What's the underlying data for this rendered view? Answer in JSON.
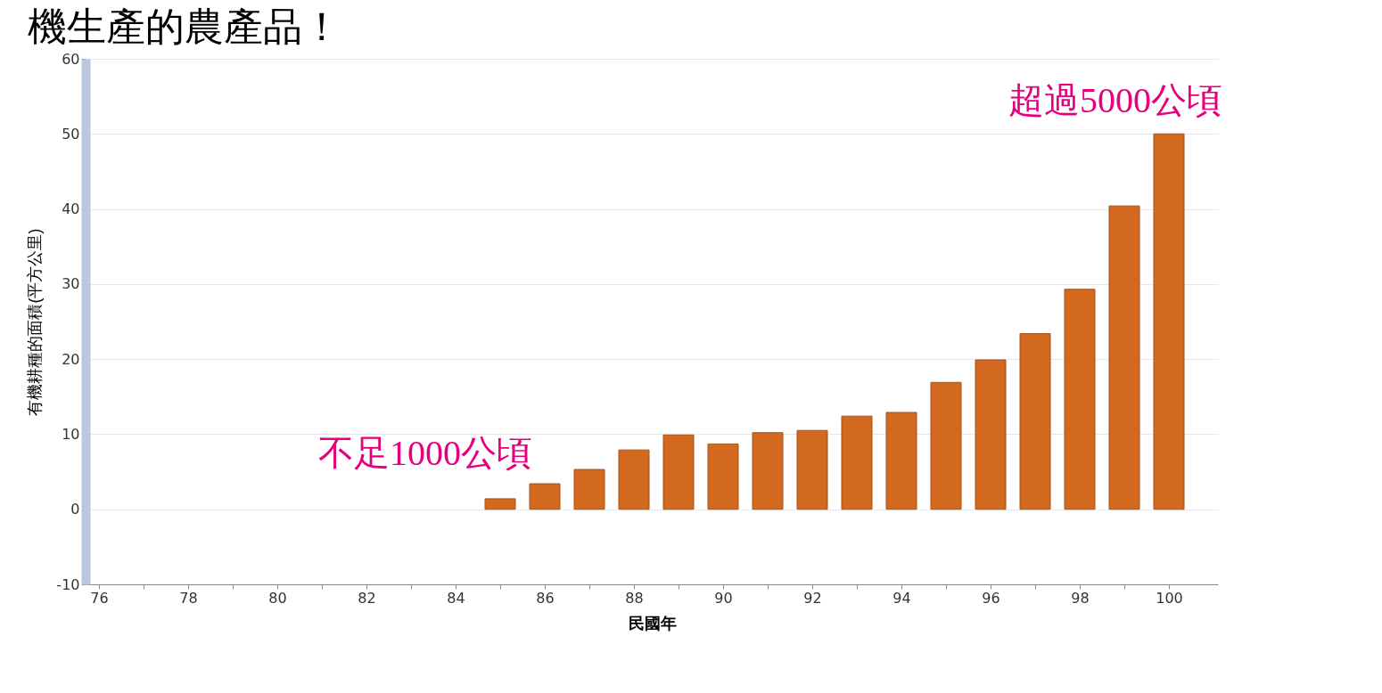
{
  "chart_data": {
    "type": "bar",
    "title": "機生產的農產品！",
    "xlabel": "民國年",
    "ylabel": "有機耕種的面積(平方公里)",
    "x": [
      85,
      86,
      87,
      88,
      89,
      90,
      91,
      92,
      93,
      94,
      95,
      96,
      97,
      98,
      99,
      100
    ],
    "values": [
      1.4,
      3.4,
      5.3,
      7.9,
      9.9,
      8.7,
      10.2,
      10.5,
      12.4,
      12.9,
      16.9,
      19.9,
      23.4,
      29.3,
      40.4,
      50
    ],
    "color": "#d2691e",
    "xlim": [
      75.8,
      101
    ],
    "xticks": [
      76,
      {
        "value": 77,
        "label": null
      },
      78,
      {
        "value": 79,
        "label": null
      },
      80,
      {
        "value": 81,
        "label": null
      },
      82,
      {
        "value": 83,
        "label": null
      },
      84,
      {
        "value": 85,
        "label": null
      },
      86,
      {
        "value": 87,
        "label": null
      },
      88,
      {
        "value": 89,
        "label": null
      },
      90,
      {
        "value": 91,
        "label": null
      },
      92,
      {
        "value": 93,
        "label": null
      },
      94,
      {
        "value": 95,
        "label": null
      },
      96,
      {
        "value": 97,
        "label": null
      },
      98,
      {
        "value": 99,
        "label": null
      },
      100
    ],
    "ylim": [
      -10,
      60
    ],
    "yticks": [
      -10,
      0,
      10,
      20,
      30,
      40,
      50,
      60
    ],
    "grid": "y",
    "annotations": [
      {
        "text": "不足1000公頃",
        "x": 85,
        "y": 1.4
      },
      {
        "text": "超過5000公頃",
        "x": 100,
        "y": 50
      }
    ]
  }
}
